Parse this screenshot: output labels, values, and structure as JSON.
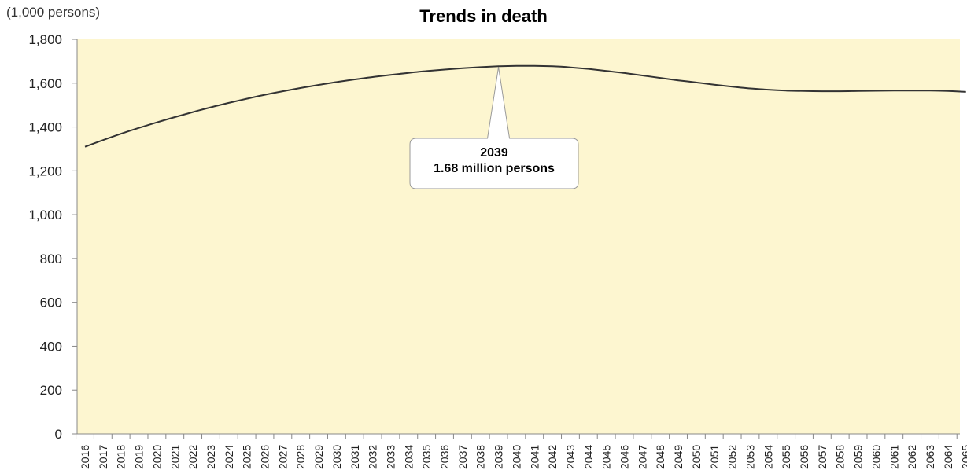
{
  "chart_data": {
    "type": "line",
    "title": "Trends in death",
    "y_unit_label": "(1,000 persons)",
    "ylim": [
      0,
      1800
    ],
    "yticks": [
      0,
      200,
      400,
      600,
      800,
      1000,
      1200,
      1400,
      1600,
      1800
    ],
    "ytick_labels": [
      "0",
      "200",
      "400",
      "600",
      "800",
      "1,000",
      "1,200",
      "1,400",
      "1,600",
      "1,800"
    ],
    "grid": false,
    "x": [
      "2016",
      "2017",
      "2018",
      "2019",
      "2020",
      "2021",
      "2022",
      "2023",
      "2024",
      "2025",
      "2026",
      "2027",
      "2028",
      "2029",
      "2030",
      "2031",
      "2032",
      "2033",
      "2034",
      "2035",
      "2036",
      "2037",
      "2038",
      "2039",
      "2040",
      "2041",
      "2042",
      "2043",
      "2044",
      "2045",
      "2046",
      "2047",
      "2048",
      "2049",
      "2050",
      "2051",
      "2052",
      "2053",
      "2054",
      "2055",
      "2056",
      "2057",
      "2058",
      "2059",
      "2060",
      "2061",
      "2062",
      "2063",
      "2064",
      "2065"
    ],
    "series": [
      {
        "values": [
          1310,
          1340,
          1369,
          1396,
          1421,
          1445,
          1468,
          1490,
          1510,
          1529,
          1547,
          1563,
          1578,
          1592,
          1605,
          1617,
          1628,
          1638,
          1647,
          1655,
          1662,
          1668,
          1673,
          1677,
          1679,
          1679,
          1677,
          1672,
          1665,
          1656,
          1646,
          1635,
          1624,
          1613,
          1603,
          1593,
          1584,
          1576,
          1570,
          1566,
          1564,
          1563,
          1563,
          1564,
          1565,
          1566,
          1566,
          1566,
          1564,
          1560
        ],
        "color": "#333333"
      }
    ],
    "annotation": {
      "x": "2039",
      "y": 1677,
      "line1": "2039",
      "line2": "1.68 million persons"
    },
    "colors": {
      "plot_background": "#fdf6d0",
      "line": "#333333",
      "axis": "#888888"
    }
  }
}
